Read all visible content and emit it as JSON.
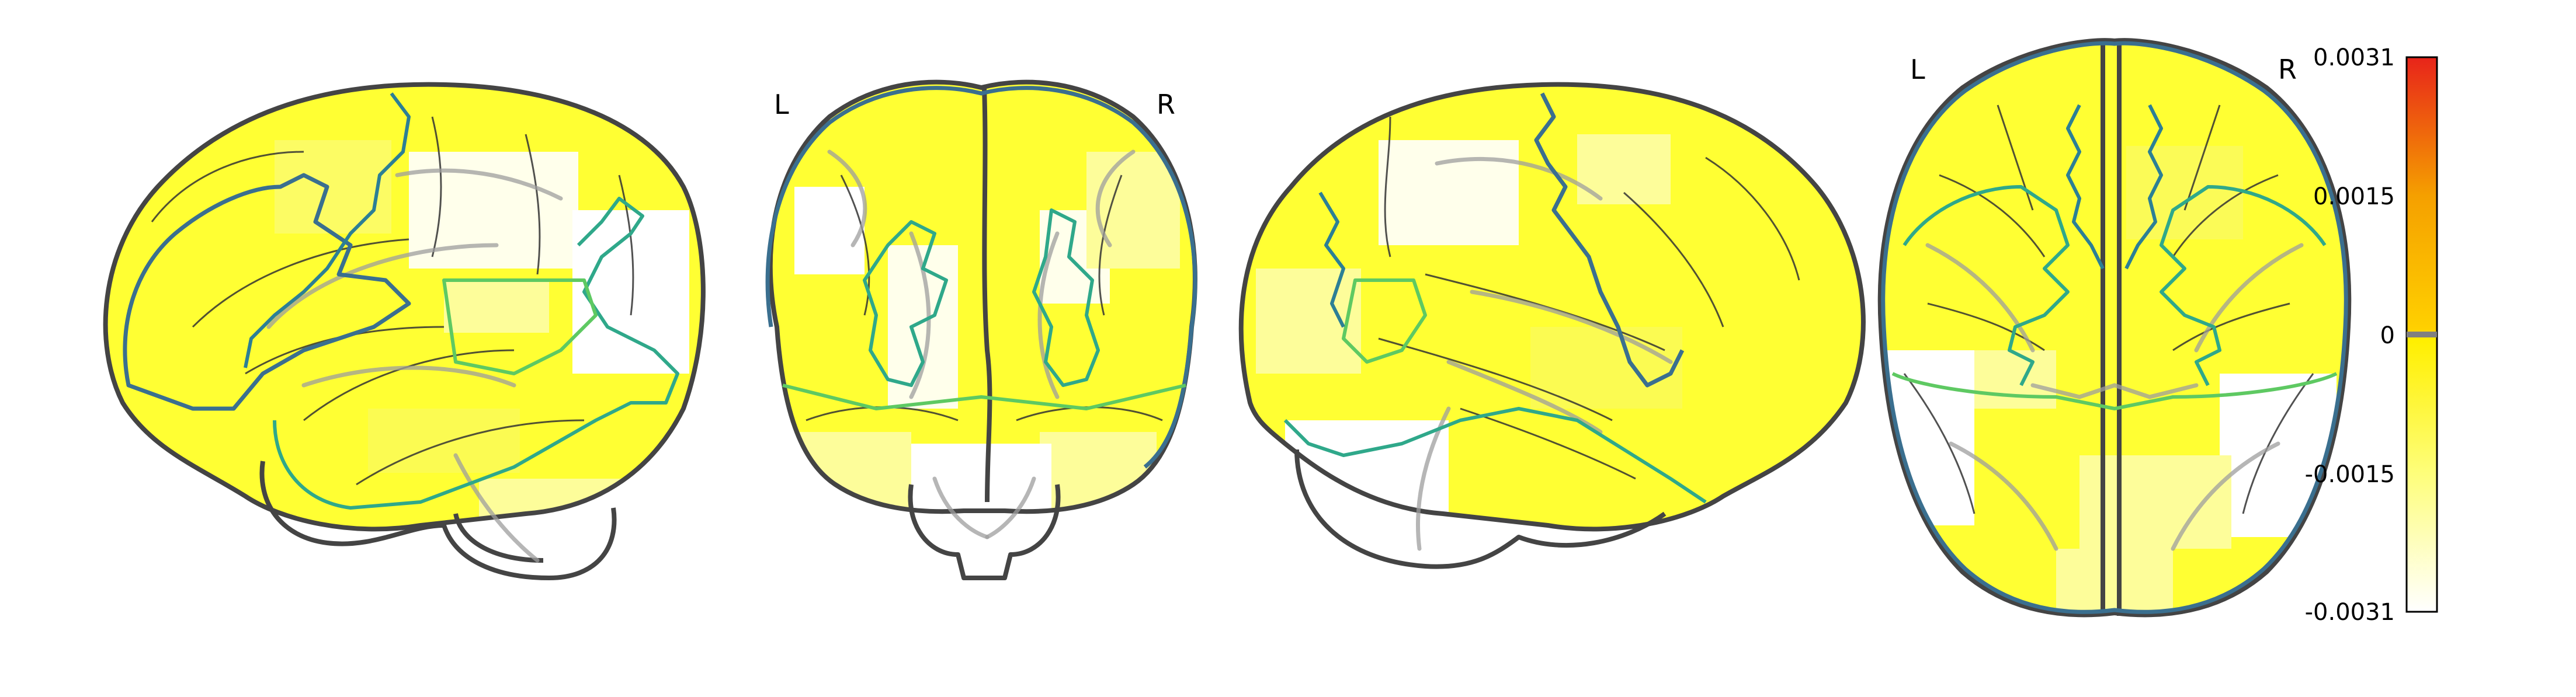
{
  "views": {
    "sagittal_left": {},
    "coronal": {
      "left_label": "L",
      "right_label": "R"
    },
    "sagittal_right": {},
    "axial": {
      "left_label": "L",
      "right_label": "R"
    }
  },
  "colorbar": {
    "vmin": -0.0031,
    "vmax": 0.0031,
    "ticks": [
      "0.0031",
      "0.0015",
      "0",
      "-0.0015",
      "-0.0031"
    ],
    "colors": {
      "top": "#e8241a",
      "upper_mid": "#f5a000",
      "center": "#ffef00",
      "lower_mid": "#fefe7a",
      "bottom": "#ffffff",
      "center_marker": "#808080"
    }
  },
  "colors": {
    "activation_fill": "#ffff33",
    "activation_fill_light": "#fdfd9a",
    "outline": "#444444",
    "contour_blue": "#3a6f8f",
    "contour_teal": "#2fa88a",
    "contour_green": "#5ec962"
  }
}
